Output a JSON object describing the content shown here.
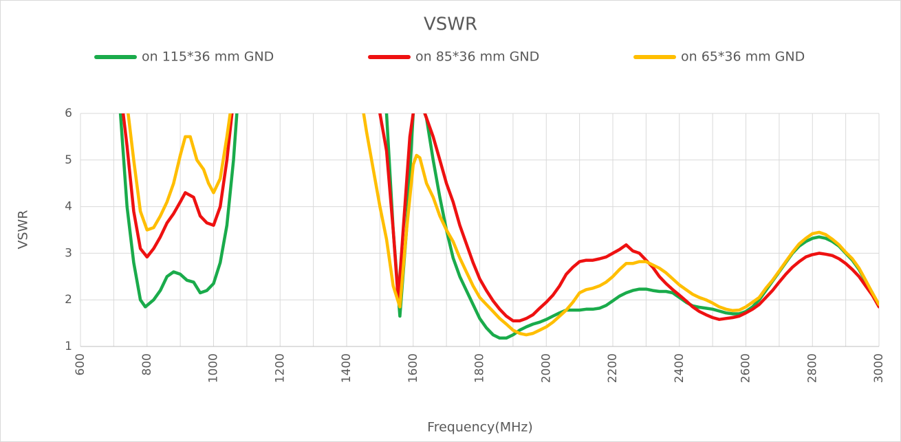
{
  "chart_data": {
    "type": "line",
    "title": "VSWR",
    "xlabel": "Frequency(MHz)",
    "ylabel": "VSWR",
    "xlim": [
      600,
      3000
    ],
    "ylim": [
      1,
      6
    ],
    "xticks": [
      600,
      800,
      1000,
      1200,
      1400,
      1600,
      1800,
      2000,
      2200,
      2400,
      2600,
      2800,
      3000
    ],
    "xminorticks": [
      700,
      900,
      1100,
      1300,
      1500,
      1700,
      1900,
      2100,
      2300,
      2500,
      2700,
      2900
    ],
    "yticks": [
      1,
      2,
      3,
      4,
      5,
      6
    ],
    "grid": true,
    "legend": "top",
    "series": [
      {
        "name": "on 115*36 mm GND",
        "color": "#1aab4b",
        "x": [
          700,
          720,
          740,
          760,
          780,
          795,
          820,
          840,
          860,
          880,
          900,
          920,
          940,
          960,
          980,
          1000,
          1020,
          1040,
          1060,
          1075,
          null,
          1500,
          1520,
          1540,
          1560,
          1580,
          1600,
          1620,
          1640,
          1660,
          1680,
          1700,
          1720,
          1740,
          1760,
          1780,
          1800,
          1820,
          1840,
          1860,
          1880,
          1900,
          1920,
          1940,
          1960,
          1980,
          2000,
          2020,
          2040,
          2060,
          2080,
          2100,
          2120,
          2140,
          2160,
          2180,
          2200,
          2220,
          2240,
          2260,
          2280,
          2300,
          2320,
          2340,
          2360,
          2380,
          2400,
          2420,
          2440,
          2460,
          2480,
          2500,
          2520,
          2540,
          2560,
          2580,
          2600,
          2620,
          2640,
          2660,
          2680,
          2700,
          2720,
          2740,
          2760,
          2780,
          2800,
          2820,
          2840,
          2860,
          2880,
          2900,
          2920,
          2940,
          2960,
          2980,
          3000
        ],
        "values": [
          8,
          6,
          4,
          2.8,
          2.0,
          1.85,
          2.0,
          2.2,
          2.5,
          2.6,
          2.55,
          2.42,
          2.38,
          2.15,
          2.2,
          2.35,
          2.8,
          3.6,
          5,
          6.5,
          null,
          8,
          6,
          3.5,
          1.65,
          3.5,
          6,
          6.3,
          5.9,
          5,
          4.2,
          3.5,
          2.9,
          2.5,
          2.2,
          1.9,
          1.6,
          1.4,
          1.25,
          1.18,
          1.18,
          1.25,
          1.35,
          1.42,
          1.48,
          1.52,
          1.58,
          1.65,
          1.72,
          1.78,
          1.78,
          1.78,
          1.8,
          1.8,
          1.82,
          1.88,
          1.98,
          2.08,
          2.15,
          2.2,
          2.23,
          2.23,
          2.2,
          2.18,
          2.18,
          2.15,
          2.05,
          1.95,
          1.87,
          1.84,
          1.82,
          1.8,
          1.76,
          1.72,
          1.7,
          1.7,
          1.75,
          1.85,
          2.0,
          2.2,
          2.4,
          2.6,
          2.8,
          3.0,
          3.15,
          3.25,
          3.32,
          3.35,
          3.32,
          3.25,
          3.15,
          3.0,
          2.85,
          2.65,
          2.4,
          2.15,
          1.88
        ]
      },
      {
        "name": "on 85*36 mm GND",
        "color": "#ee1111",
        "x": [
          720,
          740,
          760,
          780,
          800,
          820,
          840,
          860,
          880,
          900,
          915,
          940,
          960,
          980,
          1000,
          1020,
          1040,
          1060,
          null,
          1480,
          1500,
          1520,
          1540,
          1555,
          1570,
          1590,
          1610,
          1640,
          1660,
          1680,
          1700,
          1720,
          1740,
          1760,
          1780,
          1800,
          1820,
          1840,
          1860,
          1880,
          1900,
          1920,
          1940,
          1960,
          1980,
          2000,
          2020,
          2040,
          2060,
          2080,
          2100,
          2120,
          2140,
          2160,
          2180,
          2200,
          2220,
          2240,
          2260,
          2280,
          2300,
          2320,
          2340,
          2360,
          2380,
          2400,
          2420,
          2440,
          2460,
          2480,
          2500,
          2520,
          2540,
          2560,
          2580,
          2600,
          2620,
          2640,
          2660,
          2680,
          2700,
          2720,
          2740,
          2760,
          2780,
          2800,
          2820,
          2840,
          2860,
          2880,
          2900,
          2920,
          2940,
          2960,
          2980,
          3000
        ],
        "values": [
          6.5,
          5.3,
          3.9,
          3.1,
          2.92,
          3.1,
          3.35,
          3.65,
          3.85,
          4.1,
          4.3,
          4.2,
          3.8,
          3.65,
          3.6,
          4.0,
          5.0,
          6.3,
          null,
          6.5,
          6.0,
          5.2,
          3.5,
          2.0,
          3.5,
          5.5,
          6.5,
          5.9,
          5.5,
          5.0,
          4.5,
          4.1,
          3.6,
          3.2,
          2.8,
          2.45,
          2.2,
          1.98,
          1.8,
          1.65,
          1.55,
          1.55,
          1.6,
          1.68,
          1.82,
          1.95,
          2.1,
          2.3,
          2.55,
          2.7,
          2.82,
          2.85,
          2.85,
          2.88,
          2.92,
          3.0,
          3.08,
          3.18,
          3.05,
          3.0,
          2.85,
          2.7,
          2.5,
          2.35,
          2.22,
          2.1,
          1.98,
          1.85,
          1.75,
          1.68,
          1.62,
          1.58,
          1.6,
          1.62,
          1.65,
          1.72,
          1.8,
          1.9,
          2.05,
          2.2,
          2.38,
          2.55,
          2.7,
          2.82,
          2.92,
          2.97,
          3.0,
          2.98,
          2.95,
          2.88,
          2.78,
          2.65,
          2.5,
          2.3,
          2.1,
          1.85
        ]
      },
      {
        "name": "on 65*36 mm GND",
        "color": "#ffbe00",
        "x": [
          740,
          760,
          780,
          800,
          820,
          840,
          860,
          880,
          900,
          915,
          930,
          950,
          970,
          985,
          1000,
          1020,
          1040,
          1060,
          null,
          1440,
          1460,
          1480,
          1500,
          1520,
          1540,
          1560,
          1580,
          1600,
          1610,
          1620,
          1640,
          1660,
          1680,
          1700,
          1720,
          1740,
          1760,
          1780,
          1800,
          1820,
          1840,
          1860,
          1880,
          1900,
          1920,
          1940,
          1960,
          1980,
          2000,
          2020,
          2040,
          2060,
          2080,
          2100,
          2120,
          2140,
          2160,
          2180,
          2200,
          2220,
          2240,
          2260,
          2280,
          2300,
          2320,
          2340,
          2360,
          2380,
          2400,
          2420,
          2440,
          2460,
          2480,
          2500,
          2520,
          2540,
          2560,
          2580,
          2600,
          2620,
          2640,
          2660,
          2680,
          2700,
          2720,
          2740,
          2760,
          2780,
          2800,
          2820,
          2840,
          2860,
          2880,
          2900,
          2920,
          2940,
          2960,
          2980,
          3000
        ],
        "values": [
          6.2,
          5.0,
          3.9,
          3.5,
          3.55,
          3.8,
          4.1,
          4.5,
          5.1,
          5.5,
          5.5,
          5.0,
          4.8,
          4.5,
          4.3,
          4.6,
          5.5,
          6.5,
          null,
          6.5,
          5.6,
          4.8,
          4.0,
          3.3,
          2.3,
          1.85,
          3.5,
          4.9,
          5.1,
          5.05,
          4.5,
          4.2,
          3.8,
          3.5,
          3.25,
          2.9,
          2.6,
          2.3,
          2.05,
          1.9,
          1.75,
          1.6,
          1.48,
          1.35,
          1.28,
          1.25,
          1.28,
          1.35,
          1.42,
          1.52,
          1.65,
          1.78,
          1.95,
          2.15,
          2.22,
          2.25,
          2.3,
          2.38,
          2.5,
          2.65,
          2.78,
          2.78,
          2.82,
          2.82,
          2.75,
          2.68,
          2.58,
          2.45,
          2.32,
          2.22,
          2.12,
          2.05,
          2.0,
          1.93,
          1.85,
          1.8,
          1.77,
          1.78,
          1.85,
          1.95,
          2.05,
          2.25,
          2.42,
          2.62,
          2.82,
          3.02,
          3.2,
          3.32,
          3.42,
          3.45,
          3.4,
          3.3,
          3.18,
          3.02,
          2.88,
          2.68,
          2.42,
          2.15,
          1.9
        ]
      }
    ]
  }
}
